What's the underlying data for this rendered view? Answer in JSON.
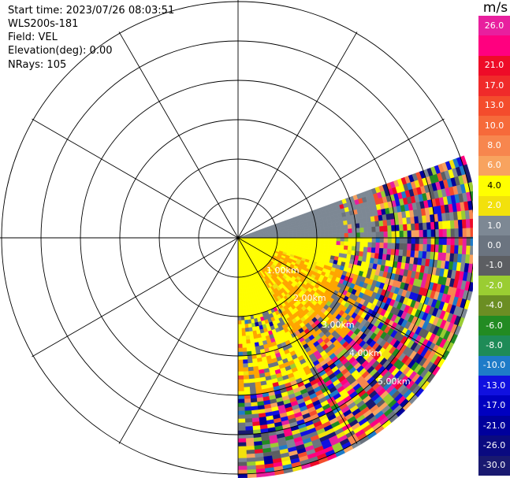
{
  "info": {
    "start_time": "Start time: 2023/07/26 08:03:51",
    "instrument": "WLS200s-181",
    "field": "Field: VEL",
    "elevation": "Elevation(deg): 0.00",
    "nrays": "NRays: 105"
  },
  "colorbar": {
    "unit": "m/s",
    "segments": [
      {
        "color": "#e81f9e",
        "label": "26.0",
        "light": true
      },
      {
        "color": "#ff007f",
        "label": ""
      },
      {
        "color": "#ee0b28",
        "label": "21.0",
        "light": true
      },
      {
        "color": "#f02a2a",
        "label": "17.0",
        "light": true
      },
      {
        "color": "#f44c2c",
        "label": "13.0",
        "light": true
      },
      {
        "color": "#f66a3a",
        "label": "10.0",
        "light": true
      },
      {
        "color": "#f7864e",
        "label": "8.0",
        "light": true
      },
      {
        "color": "#f8a35f",
        "label": "6.0",
        "light": true
      },
      {
        "color": "#ffff00",
        "label": "4.0",
        "light": false
      },
      {
        "color": "#f2e10c",
        "label": "2.0",
        "light": true
      },
      {
        "color": "#7d8894",
        "label": "1.0",
        "light": true
      },
      {
        "color": "#6b7480",
        "label": "0.0",
        "light": true
      },
      {
        "color": "#5c5e62",
        "label": "-1.0",
        "light": true
      },
      {
        "color": "#9acd32",
        "label": "-2.0",
        "light": true
      },
      {
        "color": "#6b8e23",
        "label": "-4.0",
        "light": true
      },
      {
        "color": "#228b22",
        "label": "-6.0",
        "light": true
      },
      {
        "color": "#1e8b57",
        "label": "-8.0",
        "light": true
      },
      {
        "color": "#1e7bc8",
        "label": "-10.0",
        "light": true
      },
      {
        "color": "#1010e0",
        "label": "-13.0",
        "light": true
      },
      {
        "color": "#0000c0",
        "label": "-17.0",
        "light": true
      },
      {
        "color": "#00009c",
        "label": "-21.0",
        "light": true
      },
      {
        "color": "#0a0a80",
        "label": "-26.0",
        "light": true
      },
      {
        "color": "#191970",
        "label": "-30.0",
        "light": true
      }
    ]
  },
  "range_rings": [
    "1.00km",
    "2.00km",
    "3.00km",
    "4.00km",
    "5.00km"
  ]
}
